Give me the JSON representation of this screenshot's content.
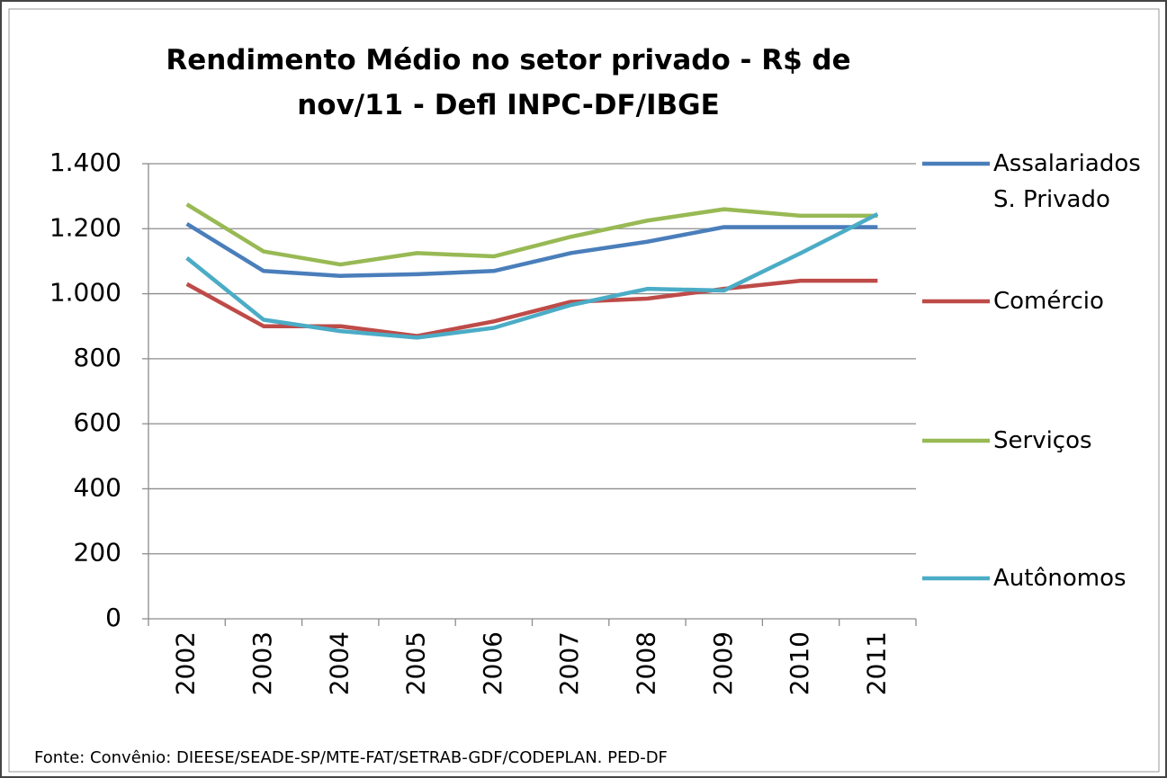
{
  "chart_data": {
    "type": "line",
    "title": "Rendimento Médio no setor privado - R$ de nov/11 - Defl INPC-DF/IBGE",
    "source": "Fonte:  Convênio: DIEESE/SEADE-SP/MTE-FAT/SETRAB-GDF/CODEPLAN.  PED-DF",
    "categories": [
      "2002",
      "2003",
      "2004",
      "2005",
      "2006",
      "2007",
      "2008",
      "2009",
      "2010",
      "2011"
    ],
    "series": [
      {
        "name": "Assalariados S. Privado",
        "color": "#4a7ebb",
        "values": [
          1215,
          1070,
          1055,
          1060,
          1070,
          1125,
          1160,
          1205,
          1205,
          1205
        ]
      },
      {
        "name": "Comércio",
        "color": "#be4b48",
        "values": [
          1030,
          900,
          900,
          870,
          915,
          975,
          985,
          1015,
          1040,
          1040
        ]
      },
      {
        "name": "Serviços",
        "color": "#98b954",
        "values": [
          1275,
          1130,
          1090,
          1125,
          1115,
          1175,
          1225,
          1260,
          1240,
          1240
        ]
      },
      {
        "name": "Autônomos",
        "color": "#4bacc6",
        "values": [
          1110,
          920,
          885,
          865,
          895,
          965,
          1015,
          1010,
          1125,
          1245
        ]
      }
    ],
    "ylim": [
      0,
      1400
    ],
    "yticks": [
      0,
      200,
      400,
      600,
      800,
      {
        "value": 1000,
        "label": "1.000"
      },
      {
        "value": 1200,
        "label": "1.200"
      },
      {
        "value": 1400,
        "label": "1.400"
      }
    ],
    "grid": true,
    "legend": "right"
  }
}
